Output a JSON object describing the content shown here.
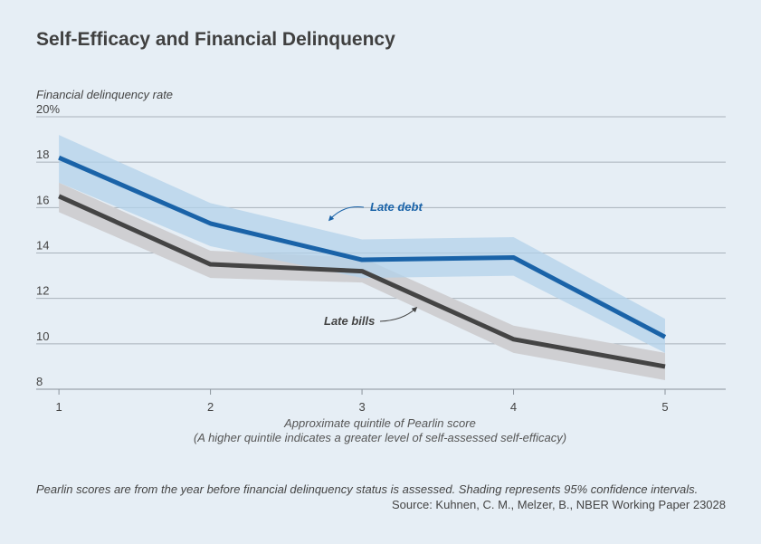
{
  "title": "Self-Efficacy and Financial Delinquency",
  "footnote": "Pearlin scores are from the year before financial delinquency status is assessed. Shading represents 95% confidence intervals.",
  "source": "Source: Kuhnen, C. M., Melzer, B., NBER Working Paper 23028",
  "chart_data": {
    "type": "line",
    "title": "Self-Efficacy and Financial Delinquency",
    "ylabel": "Financial delinquency rate",
    "xlabel": "Approximate quintile of Pearlin score",
    "xlabel_note": "(A higher quintile indicates a greater level of self-assessed self-efficacy)",
    "x": [
      1,
      2,
      3,
      4,
      5
    ],
    "x_tick_labels": [
      "1",
      "2",
      "3",
      "4",
      "5"
    ],
    "y_tick_labels": [
      "20%",
      "18",
      "16",
      "14",
      "12",
      "10",
      "8"
    ],
    "y_ticks": [
      20,
      18,
      16,
      14,
      12,
      10,
      8
    ],
    "ylim": [
      8,
      20
    ],
    "xlim": [
      0.85,
      5.4
    ],
    "grid": "horizontal",
    "series": [
      {
        "name": "Late debt",
        "color": "#1a63a8",
        "band_color": "#b3d1ea",
        "values": [
          18.2,
          15.3,
          13.7,
          13.8,
          10.3
        ],
        "ci_low": [
          17.1,
          14.3,
          12.9,
          13.0,
          9.6
        ],
        "ci_high": [
          19.2,
          16.2,
          14.6,
          14.7,
          11.1
        ]
      },
      {
        "name": "Late bills",
        "color": "#444444",
        "band_color": "#cfcfd2",
        "values": [
          16.5,
          13.5,
          13.2,
          10.2,
          9.0
        ],
        "ci_low": [
          15.8,
          12.9,
          12.7,
          9.6,
          8.4
        ],
        "ci_high": [
          17.1,
          14.1,
          13.8,
          10.8,
          9.6
        ]
      }
    ],
    "annotations": [
      {
        "text": "Late debt",
        "series": "Late debt"
      },
      {
        "text": "Late bills",
        "series": "Late bills"
      }
    ]
  }
}
